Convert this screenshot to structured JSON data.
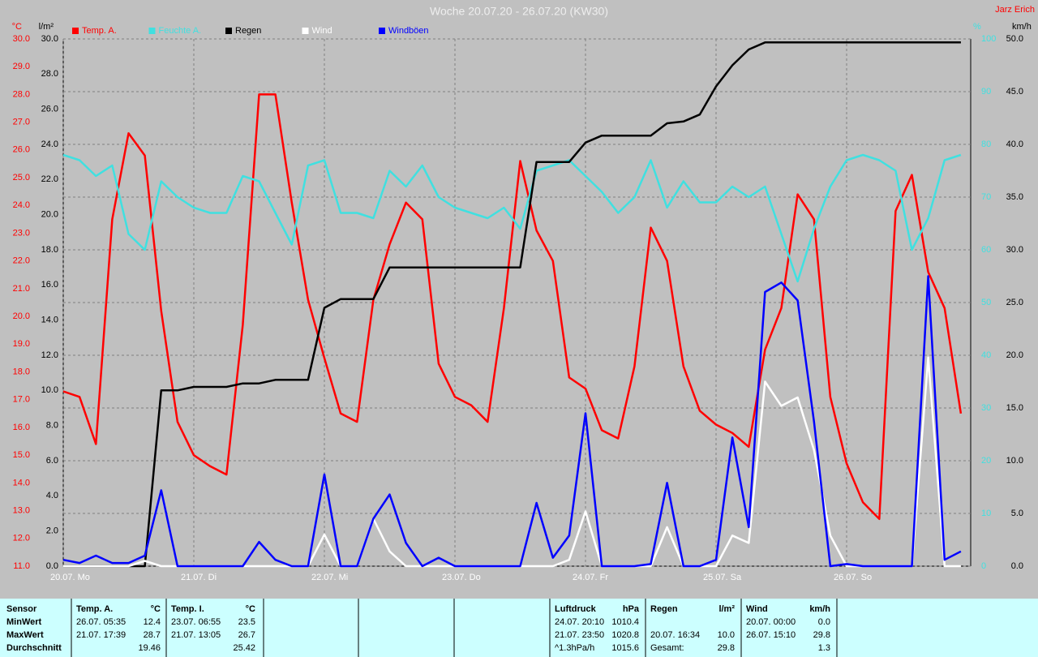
{
  "chart_data": {
    "type": "line",
    "title": "Woche 20.07.20 - 26.07.20 (KW30)",
    "author": "Jarz Erich",
    "y_unit": "°C",
    "y3_unit": "l/m²",
    "y4_unit": "%",
    "y2_unit": "km/h",
    "legend": "top-left",
    "grid": true,
    "xlim": [
      0,
      168
    ],
    "xticks": [
      {
        "value": 0,
        "label": "20.07. Mo"
      },
      {
        "value": 24,
        "label": "21.07. Di"
      },
      {
        "value": 48,
        "label": "22.07. Mi"
      },
      {
        "value": 72,
        "label": "23.07. Do"
      },
      {
        "value": 96,
        "label": "24.07. Fr"
      },
      {
        "value": 120,
        "label": "25.07. Sa"
      },
      {
        "value": 144,
        "label": "26.07. So"
      }
    ],
    "ylim": [
      11,
      30
    ],
    "yticks": [
      {
        "value": 11,
        "label": "11.0"
      },
      {
        "value": 12,
        "label": "12.0"
      },
      {
        "value": 13,
        "label": "13.0"
      },
      {
        "value": 14,
        "label": "14.0"
      },
      {
        "value": 15,
        "label": "15.0"
      },
      {
        "value": 16,
        "label": "16.0"
      },
      {
        "value": 17,
        "label": "17.0"
      },
      {
        "value": 18,
        "label": "18.0"
      },
      {
        "value": 19,
        "label": "19.0"
      },
      {
        "value": 20,
        "label": "20.0"
      },
      {
        "value": 21,
        "label": "21.0"
      },
      {
        "value": 22,
        "label": "22.0"
      },
      {
        "value": 23,
        "label": "23.0"
      },
      {
        "value": 24,
        "label": "24.0"
      },
      {
        "value": 25,
        "label": "25.0"
      },
      {
        "value": 26,
        "label": "26.0"
      },
      {
        "value": 27,
        "label": "27.0"
      },
      {
        "value": 28,
        "label": "28.0"
      },
      {
        "value": 29,
        "label": "29.0"
      },
      {
        "value": 30,
        "label": "30.0"
      }
    ],
    "y3lim": [
      0,
      30
    ],
    "y3ticks": [
      {
        "value": 0,
        "label": "0.0"
      },
      {
        "value": 2,
        "label": "2.0"
      },
      {
        "value": 4,
        "label": "4.0"
      },
      {
        "value": 6,
        "label": "6.0"
      },
      {
        "value": 8,
        "label": "8.0"
      },
      {
        "value": 10,
        "label": "10.0"
      },
      {
        "value": 12,
        "label": "12.0"
      },
      {
        "value": 14,
        "label": "14.0"
      },
      {
        "value": 16,
        "label": "16.0"
      },
      {
        "value": 18,
        "label": "18.0"
      },
      {
        "value": 20,
        "label": "20.0"
      },
      {
        "value": 22,
        "label": "22.0"
      },
      {
        "value": 24,
        "label": "24.0"
      },
      {
        "value": 26,
        "label": "26.0"
      },
      {
        "value": 28,
        "label": "28.0"
      },
      {
        "value": 30,
        "label": "30.0"
      }
    ],
    "y4lim": [
      0,
      100
    ],
    "y4ticks": [
      0,
      10,
      20,
      30,
      40,
      50,
      60,
      70,
      80,
      90,
      100
    ],
    "y2lim": [
      0,
      50
    ],
    "y2ticks": [
      {
        "value": 0,
        "label": "0.0"
      },
      {
        "value": 5,
        "label": "5.0"
      },
      {
        "value": 10,
        "label": "10.0"
      },
      {
        "value": 15,
        "label": "15.0"
      },
      {
        "value": 20,
        "label": "20.0"
      },
      {
        "value": 25,
        "label": "25.0"
      },
      {
        "value": 30,
        "label": "30.0"
      },
      {
        "value": 35,
        "label": "35.0"
      },
      {
        "value": 40,
        "label": "40.0"
      },
      {
        "value": 45,
        "label": "45.0"
      },
      {
        "value": 50,
        "label": "50.0"
      }
    ],
    "x": [
      0,
      3,
      6,
      9,
      12,
      15,
      18,
      21,
      24,
      27,
      30,
      33,
      36,
      39,
      42,
      45,
      48,
      51,
      54,
      57,
      60,
      63,
      66,
      69,
      72,
      75,
      78,
      81,
      84,
      87,
      90,
      93,
      96,
      99,
      102,
      105,
      108,
      111,
      114,
      117,
      120,
      123,
      126,
      129,
      132,
      135,
      138,
      141,
      144,
      147,
      150,
      153,
      156,
      159,
      162,
      165
    ],
    "series": [
      {
        "name": "Temp. A.",
        "color": "#ff0000",
        "axis": "y",
        "values": [
          17.3,
          17.1,
          15.4,
          23.5,
          26.6,
          25.8,
          20.2,
          16.2,
          15.0,
          14.6,
          14.3,
          19.7,
          28.0,
          28.0,
          24.1,
          20.6,
          18.5,
          16.5,
          16.2,
          20.6,
          22.6,
          24.1,
          23.5,
          18.3,
          17.1,
          16.8,
          16.2,
          20.3,
          25.6,
          23.1,
          22.0,
          17.8,
          17.4,
          15.9,
          15.6,
          18.2,
          23.2,
          22.0,
          18.2,
          16.6,
          16.1,
          15.8,
          15.3,
          18.8,
          20.3,
          24.4,
          23.5,
          17.1,
          14.7,
          13.3,
          12.7,
          23.8,
          25.1,
          21.6,
          20.3,
          16.5
        ]
      },
      {
        "name": "Feuchte A.",
        "color": "#40e0e0",
        "axis": "y4",
        "values": [
          78,
          77,
          74,
          76,
          63,
          60,
          73,
          70,
          68,
          67,
          67,
          74,
          73,
          67,
          61,
          76,
          77,
          67,
          67,
          66,
          75,
          72,
          76,
          70,
          68,
          67,
          66,
          68,
          64,
          75,
          76,
          77,
          74,
          71,
          67,
          70,
          77,
          68,
          73,
          69,
          69,
          72,
          70,
          72,
          63,
          54,
          64,
          72,
          77,
          78,
          77,
          75,
          60,
          66,
          77,
          78
        ]
      },
      {
        "name": "Regen",
        "color": "#000000",
        "axis": "y3",
        "values": [
          0,
          0,
          0,
          0,
          0,
          0,
          10.0,
          10.0,
          10.2,
          10.2,
          10.2,
          10.4,
          10.4,
          10.6,
          10.6,
          10.6,
          14.7,
          15.2,
          15.2,
          15.2,
          17.0,
          17.0,
          17.0,
          17.0,
          17.0,
          17.0,
          17.0,
          17.0,
          17.0,
          23.0,
          23.0,
          23.0,
          24.1,
          24.5,
          24.5,
          24.5,
          24.5,
          25.2,
          25.3,
          25.7,
          27.3,
          28.5,
          29.4,
          29.8,
          29.8,
          29.8,
          29.8,
          29.8,
          29.8,
          29.8,
          29.8,
          29.8,
          29.8,
          29.8,
          29.8,
          29.8
        ]
      },
      {
        "name": "Wind",
        "color": "#ffffff",
        "axis": "y2",
        "values": [
          0,
          0,
          0,
          0,
          0,
          0.5,
          0,
          0,
          0,
          0,
          0,
          0,
          0,
          0,
          0,
          0,
          3.0,
          0,
          0,
          4.5,
          1.4,
          0,
          0,
          0,
          0,
          0,
          0,
          0,
          0,
          0,
          0,
          0.6,
          5.2,
          0,
          0,
          0,
          0,
          3.7,
          0,
          0,
          0,
          2.9,
          2.2,
          17.5,
          15.2,
          16.0,
          11.0,
          2.9,
          0,
          0,
          0,
          0,
          0,
          19.8,
          0,
          0
        ]
      },
      {
        "name": "Windböen",
        "color": "#0000ff",
        "axis": "y2",
        "values": [
          0.6,
          0.3,
          1.0,
          0.3,
          0.3,
          1.0,
          7.2,
          0,
          0,
          0,
          0,
          0,
          2.3,
          0.6,
          0,
          0,
          8.7,
          0,
          0,
          4.5,
          6.8,
          2.2,
          0,
          0.8,
          0,
          0,
          0,
          0,
          0,
          6.0,
          0.8,
          2.9,
          14.5,
          0,
          0,
          0,
          0.2,
          7.9,
          0,
          0,
          0.6,
          12.2,
          3.7,
          26.0,
          26.9,
          25.2,
          13.7,
          0,
          0.2,
          0,
          0,
          0,
          0,
          27.5,
          0.6,
          1.4
        ]
      }
    ]
  },
  "table": {
    "row_labels": [
      "Sensor",
      "MinWert",
      "MaxWert",
      "Durchschnitt"
    ],
    "columns": [
      {
        "title": "Temp. A.",
        "unit": "°C",
        "rows": [
          [
            "26.07.  05:35",
            "12.4"
          ],
          [
            "21.07.  17:39",
            "28.7"
          ],
          [
            null,
            "19.46"
          ]
        ]
      },
      {
        "title": "Temp. I.",
        "unit": "°C",
        "rows": [
          [
            "23.07.  06:55",
            "23.5"
          ],
          [
            "21.07.  13:05",
            "26.7"
          ],
          [
            null,
            "25.42"
          ]
        ]
      },
      {
        "title": "Luftdruck",
        "unit": "hPa",
        "rows": [
          [
            "24.07.  20:10",
            "1010.4"
          ],
          [
            "21.07.  23:50",
            "1020.8"
          ],
          [
            "^1.3hPa/h",
            "1015.6"
          ]
        ]
      },
      {
        "title": "Regen",
        "unit": "l/m²",
        "rows": [
          [
            null,
            null
          ],
          [
            "20.07.  16:34",
            "10.0"
          ],
          [
            "Gesamt:",
            "29.8"
          ]
        ]
      },
      {
        "title": "Wind",
        "unit": "km/h",
        "rows": [
          [
            "20.07.  00:00",
            "0.0"
          ],
          [
            "26.07.  15:10",
            "29.8"
          ],
          [
            null,
            "1.3"
          ]
        ]
      }
    ]
  }
}
